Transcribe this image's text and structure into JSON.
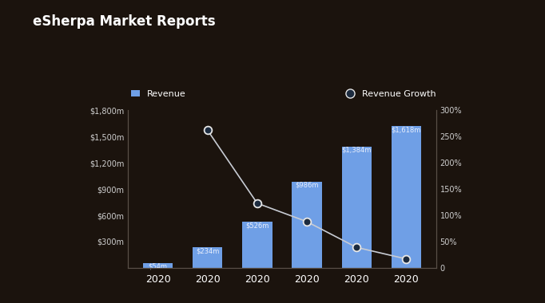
{
  "chart_data": {
    "type": "bar",
    "title": "eSherpa Market Reports",
    "categories": [
      "2020",
      "2020",
      "2020",
      "2020",
      "2020",
      "2020"
    ],
    "series": [
      {
        "name": "Revenue",
        "type": "bar",
        "color": "#6f9fe6",
        "values": [
          54,
          234,
          526,
          986,
          1384,
          1618
        ],
        "value_labels": [
          "$54m",
          "$234m",
          "$526m",
          "$986m",
          "$1,384m",
          "$1,618m"
        ]
      },
      {
        "name": "Revenue Growth",
        "type": "line",
        "axis": "y2",
        "color": "#1c2b3f",
        "marker": "circle",
        "line_style": "solid",
        "values": [
          null,
          262,
          123,
          88,
          39,
          17
        ]
      }
    ],
    "ylim": [
      0,
      1800
    ],
    "yticks": [
      {
        "value": 300,
        "label": "$300m"
      },
      {
        "value": 600,
        "label": "$600m"
      },
      {
        "value": 900,
        "label": "$900m"
      },
      {
        "value": 1200,
        "label": "$1,200m"
      },
      {
        "value": 1500,
        "label": "$1,500m"
      },
      {
        "value": 1800,
        "label": "$1,800m"
      }
    ],
    "y2lim": [
      0,
      300
    ],
    "y2ticks": [
      0,
      {
        "value": 50,
        "label": "50%"
      },
      {
        "value": 100,
        "label": "100%"
      },
      {
        "value": 150,
        "label": "150%"
      },
      {
        "value": 200,
        "label": "200%"
      },
      {
        "value": 250,
        "label": "250%"
      },
      {
        "value": 300,
        "label": "300%"
      }
    ],
    "data_labels": true,
    "grid": false,
    "legend": "upper center"
  }
}
